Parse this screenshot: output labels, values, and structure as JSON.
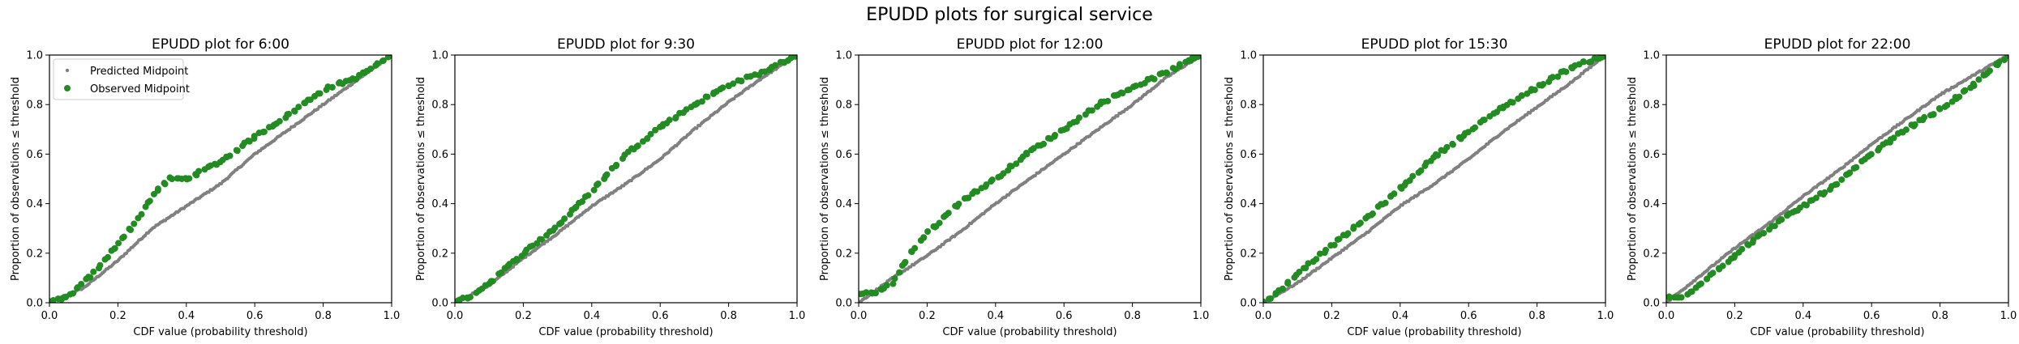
{
  "figure": {
    "suptitle": "EPUDD plots for surgical service",
    "colors": {
      "predicted": "#808080",
      "observed": "#228b22"
    }
  },
  "chart_data": [
    {
      "type": "scatter",
      "title": "EPUDD plot for 6:00",
      "xlabel": "CDF value (probability threshold)",
      "ylabel": "Proportion of observations ≤ threshold",
      "xlim": [
        0,
        1
      ],
      "ylim": [
        0,
        1
      ],
      "xticks": [
        "0.0",
        "0.2",
        "0.4",
        "0.6",
        "0.8",
        "1.0"
      ],
      "yticks": [
        "0.0",
        "0.2",
        "0.4",
        "0.6",
        "0.8",
        "1.0"
      ],
      "legend": {
        "position": "top-left",
        "entries": [
          "Predicted Midpoint",
          "Observed Midpoint"
        ]
      },
      "series": [
        {
          "name": "Predicted Midpoint",
          "marker": "small",
          "points": [
            [
              0,
              0
            ],
            [
              0.1,
              0.06
            ],
            [
              0.2,
              0.17
            ],
            [
              0.3,
              0.3
            ],
            [
              0.4,
              0.39
            ],
            [
              0.5,
              0.48
            ],
            [
              0.6,
              0.6
            ],
            [
              0.7,
              0.7
            ],
            [
              0.8,
              0.8
            ],
            [
              0.9,
              0.9
            ],
            [
              1,
              1
            ]
          ]
        },
        {
          "name": "Observed Midpoint",
          "marker": "large",
          "points": [
            [
              0,
              0
            ],
            [
              0.05,
              0.02
            ],
            [
              0.1,
              0.08
            ],
            [
              0.15,
              0.15
            ],
            [
              0.2,
              0.24
            ],
            [
              0.25,
              0.32
            ],
            [
              0.3,
              0.43
            ],
            [
              0.35,
              0.5
            ],
            [
              0.4,
              0.5
            ],
            [
              0.5,
              0.57
            ],
            [
              0.6,
              0.67
            ],
            [
              0.7,
              0.76
            ],
            [
              0.8,
              0.86
            ],
            [
              0.9,
              0.91
            ],
            [
              1,
              1
            ]
          ]
        }
      ]
    },
    {
      "type": "scatter",
      "title": "EPUDD plot for 9:30",
      "xlabel": "CDF value (probability threshold)",
      "ylabel": "Proportion of observations ≤ threshold",
      "xlim": [
        0,
        1
      ],
      "ylim": [
        0,
        1
      ],
      "xticks": [
        "0.0",
        "0.2",
        "0.4",
        "0.6",
        "0.8",
        "1.0"
      ],
      "yticks": [
        "0.0",
        "0.2",
        "0.4",
        "0.6",
        "0.8",
        "1.0"
      ],
      "series": [
        {
          "name": "Predicted Midpoint",
          "marker": "small",
          "points": [
            [
              0,
              0
            ],
            [
              0.1,
              0.07
            ],
            [
              0.2,
              0.18
            ],
            [
              0.3,
              0.28
            ],
            [
              0.4,
              0.39
            ],
            [
              0.5,
              0.48
            ],
            [
              0.6,
              0.58
            ],
            [
              0.7,
              0.7
            ],
            [
              0.8,
              0.81
            ],
            [
              0.9,
              0.91
            ],
            [
              1,
              1
            ]
          ]
        },
        {
          "name": "Observed Midpoint",
          "marker": "large",
          "points": [
            [
              0,
              0
            ],
            [
              0.05,
              0.03
            ],
            [
              0.1,
              0.08
            ],
            [
              0.2,
              0.2
            ],
            [
              0.3,
              0.31
            ],
            [
              0.4,
              0.45
            ],
            [
              0.5,
              0.6
            ],
            [
              0.6,
              0.71
            ],
            [
              0.7,
              0.8
            ],
            [
              0.8,
              0.88
            ],
            [
              0.9,
              0.93
            ],
            [
              1,
              1
            ]
          ]
        }
      ]
    },
    {
      "type": "scatter",
      "title": "EPUDD plot for 12:00",
      "xlabel": "CDF value (probability threshold)",
      "ylabel": "Proportion of observations ≤ threshold",
      "xlim": [
        0,
        1
      ],
      "ylim": [
        0,
        1
      ],
      "xticks": [
        "0.0",
        "0.2",
        "0.4",
        "0.6",
        "0.8",
        "1.0"
      ],
      "yticks": [
        "0.0",
        "0.2",
        "0.4",
        "0.6",
        "0.8",
        "1.0"
      ],
      "series": [
        {
          "name": "Predicted Midpoint",
          "marker": "small",
          "points": [
            [
              0,
              0
            ],
            [
              0.1,
              0.1
            ],
            [
              0.2,
              0.19
            ],
            [
              0.3,
              0.29
            ],
            [
              0.4,
              0.4
            ],
            [
              0.5,
              0.5
            ],
            [
              0.6,
              0.6
            ],
            [
              0.7,
              0.7
            ],
            [
              0.8,
              0.8
            ],
            [
              0.9,
              0.91
            ],
            [
              1,
              1
            ]
          ]
        },
        {
          "name": "Observed Midpoint",
          "marker": "large",
          "points": [
            [
              0.05,
              0.04
            ],
            [
              0.1,
              0.08
            ],
            [
              0.15,
              0.2
            ],
            [
              0.2,
              0.28
            ],
            [
              0.3,
              0.41
            ],
            [
              0.4,
              0.5
            ],
            [
              0.5,
              0.61
            ],
            [
              0.6,
              0.7
            ],
            [
              0.7,
              0.8
            ],
            [
              0.8,
              0.87
            ],
            [
              0.9,
              0.93
            ],
            [
              1,
              1
            ]
          ]
        }
      ]
    },
    {
      "type": "scatter",
      "title": "EPUDD plot for 15:30",
      "xlabel": "CDF value (probability threshold)",
      "ylabel": "Proportion of observations ≤ threshold",
      "xlim": [
        0,
        1
      ],
      "ylim": [
        0,
        1
      ],
      "xticks": [
        "0.0",
        "0.2",
        "0.4",
        "0.6",
        "0.8",
        "1.0"
      ],
      "yticks": [
        "0.0",
        "0.2",
        "0.4",
        "0.6",
        "0.8",
        "1.0"
      ],
      "series": [
        {
          "name": "Predicted Midpoint",
          "marker": "small",
          "points": [
            [
              0,
              0
            ],
            [
              0.1,
              0.08
            ],
            [
              0.2,
              0.18
            ],
            [
              0.3,
              0.28
            ],
            [
              0.4,
              0.39
            ],
            [
              0.5,
              0.48
            ],
            [
              0.6,
              0.58
            ],
            [
              0.7,
              0.69
            ],
            [
              0.8,
              0.79
            ],
            [
              0.9,
              0.89
            ],
            [
              1,
              1
            ]
          ]
        },
        {
          "name": "Observed Midpoint",
          "marker": "large",
          "points": [
            [
              0,
              0
            ],
            [
              0.05,
              0.05
            ],
            [
              0.1,
              0.12
            ],
            [
              0.2,
              0.23
            ],
            [
              0.3,
              0.34
            ],
            [
              0.4,
              0.46
            ],
            [
              0.5,
              0.59
            ],
            [
              0.6,
              0.69
            ],
            [
              0.7,
              0.79
            ],
            [
              0.8,
              0.87
            ],
            [
              0.9,
              0.95
            ],
            [
              1,
              1
            ]
          ]
        }
      ]
    },
    {
      "type": "scatter",
      "title": "EPUDD plot for 22:00",
      "xlabel": "CDF value (probability threshold)",
      "ylabel": "Proportion of observations ≤ threshold",
      "xlim": [
        0,
        1
      ],
      "ylim": [
        0,
        1
      ],
      "xticks": [
        "0.0",
        "0.2",
        "0.4",
        "0.6",
        "0.8",
        "1.0"
      ],
      "yticks": [
        "0.0",
        "0.2",
        "0.4",
        "0.6",
        "0.8",
        "1.0"
      ],
      "series": [
        {
          "name": "Predicted Midpoint",
          "marker": "small",
          "points": [
            [
              0,
              0
            ],
            [
              0.1,
              0.11
            ],
            [
              0.2,
              0.22
            ],
            [
              0.3,
              0.32
            ],
            [
              0.4,
              0.43
            ],
            [
              0.5,
              0.53
            ],
            [
              0.6,
              0.64
            ],
            [
              0.7,
              0.74
            ],
            [
              0.8,
              0.84
            ],
            [
              0.9,
              0.92
            ],
            [
              1,
              1
            ]
          ]
        },
        {
          "name": "Observed Midpoint",
          "marker": "large",
          "points": [
            [
              0.05,
              0.02
            ],
            [
              0.1,
              0.08
            ],
            [
              0.2,
              0.19
            ],
            [
              0.3,
              0.3
            ],
            [
              0.4,
              0.39
            ],
            [
              0.5,
              0.48
            ],
            [
              0.6,
              0.6
            ],
            [
              0.7,
              0.7
            ],
            [
              0.8,
              0.78
            ],
            [
              0.9,
              0.88
            ],
            [
              1,
              1
            ]
          ]
        }
      ]
    }
  ]
}
